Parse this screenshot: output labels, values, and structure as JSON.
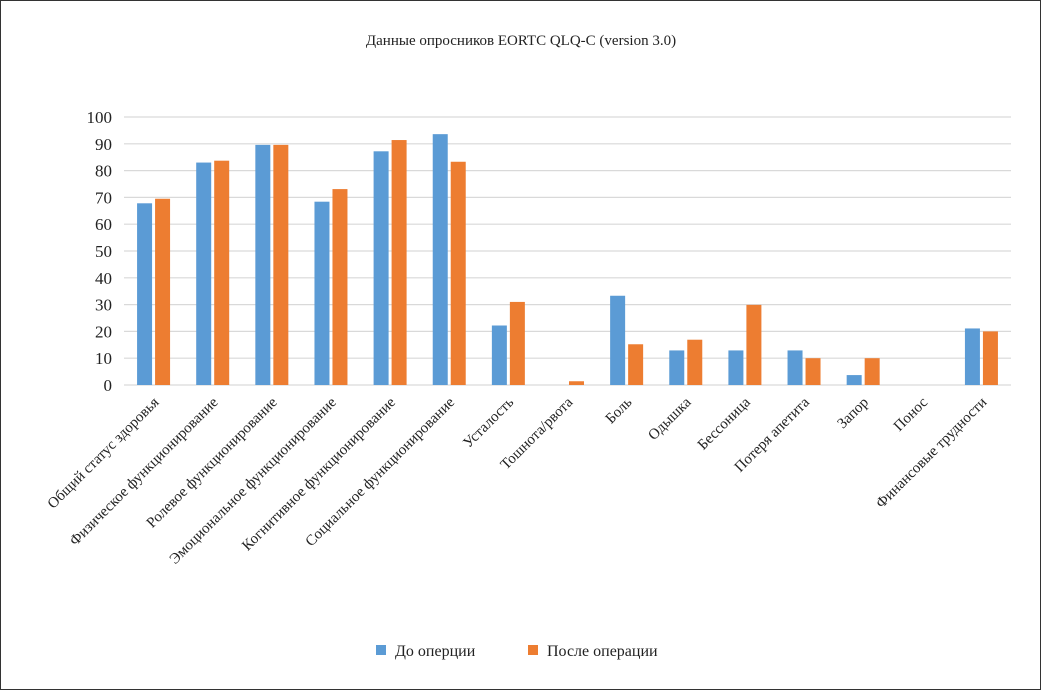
{
  "chart_data": {
    "type": "bar",
    "title": "Данные опросников EORTC QLQ-C (version 3.0)",
    "categories": [
      "Общий статус здоровья",
      "Физическое функционирование",
      "Ролевое функционирование",
      "Эмоциональное функционирование",
      "Когнитивное функционирование",
      "Социальное функционирование",
      "Усталость",
      "Тошнота/рвота",
      "Боль",
      "Одышка",
      "Бессоница",
      "Потеря апетита",
      "Запор",
      "Понос",
      "Финансовые трудности"
    ],
    "series": [
      {
        "name": "До оперции",
        "color": "#5B9BD5",
        "values": [
          67.8,
          83.0,
          89.6,
          68.4,
          87.2,
          93.6,
          22.2,
          0,
          33.3,
          12.9,
          12.9,
          12.9,
          3.7,
          0,
          21.1
        ]
      },
      {
        "name": "После операции",
        "color": "#ED7D31",
        "values": [
          69.5,
          83.7,
          89.6,
          73.1,
          91.4,
          83.3,
          31.0,
          1.4,
          15.2,
          16.9,
          29.9,
          10.0,
          10.0,
          0,
          20.0
        ]
      }
    ],
    "ylim": [
      0,
      100
    ],
    "yticks": [
      0,
      10,
      20,
      30,
      40,
      50,
      60,
      70,
      80,
      90,
      100
    ],
    "grid": true,
    "legend": "bottom"
  }
}
